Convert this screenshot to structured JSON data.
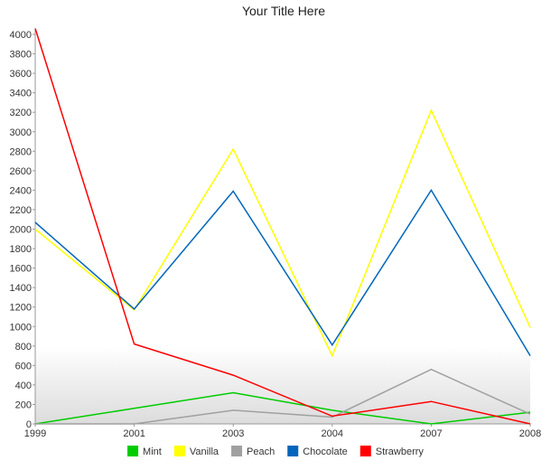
{
  "chart_data": {
    "type": "line",
    "title": "Your Title Here",
    "xlabel": "",
    "ylabel": "",
    "x": [
      "1999",
      "2001",
      "2003",
      "2004",
      "2007",
      "2008"
    ],
    "ylim": [
      0,
      4000
    ],
    "y_ticks": [
      0,
      200,
      400,
      600,
      800,
      1000,
      1200,
      1400,
      1600,
      1800,
      2000,
      2200,
      2400,
      2600,
      2800,
      3000,
      3200,
      3400,
      3600,
      3800,
      4000
    ],
    "grid": false,
    "legend_position": "bottom",
    "series": [
      {
        "name": "Mint",
        "color": "#00cc00",
        "values": [
          0,
          160,
          320,
          140,
          0,
          120
        ]
      },
      {
        "name": "Vanilla",
        "color": "#ffff00",
        "values": [
          2000,
          1170,
          2820,
          700,
          3220,
          990
        ]
      },
      {
        "name": "Peach",
        "color": "#a0a0a0",
        "values": [
          0,
          0,
          140,
          70,
          560,
          100
        ]
      },
      {
        "name": "Chocolate",
        "color": "#0066bb",
        "values": [
          2070,
          1180,
          2390,
          810,
          2400,
          700
        ]
      },
      {
        "name": "Strawberry",
        "color": "#ff0000",
        "values": [
          4060,
          820,
          500,
          80,
          230,
          0
        ]
      }
    ]
  }
}
